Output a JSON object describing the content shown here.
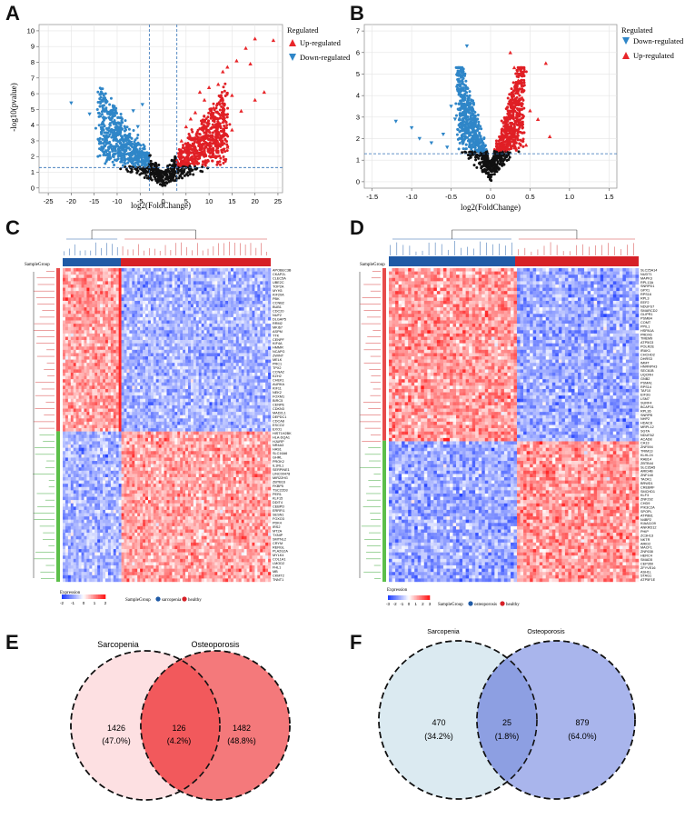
{
  "panels": {
    "A": {
      "letter": "A"
    },
    "B": {
      "letter": "B"
    },
    "C": {
      "letter": "C"
    },
    "D": {
      "letter": "D"
    },
    "E": {
      "letter": "E"
    },
    "F": {
      "letter": "F"
    }
  },
  "chart_data": [
    {
      "panel": "A",
      "type": "scatter",
      "title": "",
      "xlabel": "log2(FoldChange)",
      "ylabel": "-log10(pvalue)",
      "xlim": [
        -27,
        26
      ],
      "ylim": [
        -0.3,
        10.4
      ],
      "xticks": [
        "-25",
        "-20",
        "-15",
        "-10",
        "-5",
        "0",
        "5",
        "10",
        "15",
        "20",
        "25"
      ],
      "xtick_values": [
        -25,
        -20,
        -15,
        -10,
        -5,
        0,
        5,
        10,
        15,
        20,
        25
      ],
      "yticks": [
        "0",
        "1",
        "2",
        "3",
        "4",
        "5",
        "6",
        "7",
        "8",
        "9",
        "10"
      ],
      "ytick_values": [
        0,
        1,
        2,
        3,
        4,
        5,
        6,
        7,
        8,
        9,
        10
      ],
      "threshold_x": [
        -3,
        3
      ],
      "threshold_y": 1.3,
      "legend_title": "Regulated",
      "legend": [
        {
          "label": "Up-regulated",
          "color": "#e8262a",
          "marker": "triangle-up"
        },
        {
          "label": "Down-regulated",
          "color": "#2f86c8",
          "marker": "triangle-down"
        }
      ],
      "series": [
        {
          "name": "Up-regulated",
          "color": "#e8262a",
          "points": [
            [
              24,
              9.4
            ],
            [
              20,
              9.5
            ],
            [
              18,
              8.9
            ],
            [
              16,
              8.1
            ],
            [
              19,
              7.9
            ],
            [
              14,
              7.7
            ],
            [
              13,
              7.4
            ],
            [
              22,
              6.1
            ],
            [
              12,
              6.6
            ],
            [
              10,
              6.4
            ],
            [
              8,
              6.1
            ],
            [
              15,
              5.9
            ],
            [
              9,
              5.6
            ],
            [
              11,
              5.1
            ],
            [
              7,
              4.8
            ],
            [
              17,
              4.9
            ],
            [
              6,
              4.4
            ],
            [
              13,
              4.2
            ],
            [
              5,
              3.9
            ],
            [
              10,
              3.6
            ],
            [
              8,
              3.2
            ],
            [
              4,
              3.0
            ],
            [
              12,
              2.9
            ],
            [
              6,
              2.6
            ],
            [
              9,
              2.3
            ],
            [
              15,
              3.7
            ],
            [
              20,
              5.6
            ],
            [
              3.5,
              2.1
            ],
            [
              5,
              1.8
            ],
            [
              7,
              1.6
            ],
            [
              11,
              2.0
            ],
            [
              14,
              2.6
            ]
          ]
        },
        {
          "name": "Down-regulated",
          "color": "#2f86c8",
          "points": [
            [
              -20,
              5.4
            ],
            [
              -16,
              4.7
            ],
            [
              -13,
              4.4
            ],
            [
              -10,
              4.1
            ],
            [
              -12,
              3.5
            ],
            [
              -8,
              3.3
            ],
            [
              -7,
              2.9
            ],
            [
              -9,
              2.6
            ],
            [
              -6,
              2.4
            ],
            [
              -5,
              2.1
            ],
            [
              -4,
              1.9
            ],
            [
              -11,
              2.4
            ],
            [
              -14,
              3.0
            ],
            [
              -5.5,
              3.9
            ],
            [
              -6.5,
              4.9
            ],
            [
              -4.5,
              5.3
            ],
            [
              -3.8,
              1.6
            ],
            [
              -8.5,
              1.9
            ]
          ]
        }
      ]
    },
    {
      "panel": "B",
      "type": "scatter",
      "title": "",
      "xlabel": "log2(FoldChange)",
      "ylabel": "",
      "xlim": [
        -1.6,
        1.6
      ],
      "ylim": [
        -0.3,
        7.3
      ],
      "xticks": [
        "-1.5",
        "-1.0",
        "-0.5",
        "0.0",
        "0.5",
        "1.0",
        "1.5"
      ],
      "xtick_values": [
        -1.5,
        -1.0,
        -0.5,
        0.0,
        0.5,
        1.0,
        1.5
      ],
      "yticks": [
        "0",
        "1",
        "2",
        "3",
        "4",
        "5",
        "6",
        "7"
      ],
      "ytick_values": [
        0,
        1,
        2,
        3,
        4,
        5,
        6,
        7
      ],
      "threshold_y": 1.3,
      "legend_title": "Regulated",
      "legend": [
        {
          "label": "Down-regulated",
          "color": "#2f86c8",
          "marker": "triangle-down"
        },
        {
          "label": "Up-regulated",
          "color": "#e8262a",
          "marker": "triangle-up"
        }
      ],
      "series": [
        {
          "name": "Down-regulated",
          "color": "#2f86c8",
          "points": [
            [
              -0.3,
              6.3
            ],
            [
              -0.5,
              3.5
            ],
            [
              -1.2,
              2.8
            ],
            [
              -1.0,
              2.5
            ],
            [
              -0.9,
              2.0
            ],
            [
              -0.6,
              2.2
            ],
            [
              -0.45,
              2.9
            ],
            [
              -0.35,
              4.9
            ],
            [
              -0.55,
              1.6
            ],
            [
              -0.25,
              3.6
            ],
            [
              -0.4,
              4.2
            ],
            [
              -0.75,
              1.8
            ]
          ]
        },
        {
          "name": "Up-regulated",
          "color": "#e8262a",
          "points": [
            [
              0.7,
              5.5
            ],
            [
              0.3,
              5.3
            ],
            [
              0.25,
              6.0
            ],
            [
              0.4,
              3.9
            ],
            [
              0.6,
              2.9
            ],
            [
              0.75,
              2.1
            ],
            [
              0.5,
              3.3
            ],
            [
              0.35,
              4.7
            ],
            [
              0.45,
              1.7
            ]
          ]
        }
      ]
    },
    {
      "panel": "C",
      "type": "heatmap",
      "group_label": "SampleGroup",
      "legend_title": "Expression",
      "scale": [
        "-2",
        "-1",
        "0",
        "1",
        "2"
      ],
      "groups": [
        "sarcopenia",
        "healthy"
      ],
      "group_colors": [
        "#1f5aa6",
        "#d62027"
      ],
      "genes": [
        "APOBEC3B",
        "CKAP2L",
        "CLEC5A",
        "UBE2C",
        "TOP2A",
        "MYH3",
        "KIF20A",
        "PBK",
        "CCNB2",
        "BUB1",
        "CDC20",
        "NUF2",
        "DLGAP5",
        "RRM2",
        "MKI67",
        "ASPM",
        "TTK",
        "CENPF",
        "KIF4A",
        "HMMR",
        "NCAPG",
        "ZWINT",
        "MELK",
        "PRC1",
        "TPX2",
        "CCNA2",
        "EZH2",
        "CHEK1",
        "AURKA",
        "KIF11",
        "NEK2",
        "FOXM1",
        "BIRC5",
        "CENPE",
        "CDKN3",
        "MAD2L1",
        "DEPDC1",
        "CDCA8",
        "ESCO2",
        "EXO1",
        "HIST1H2BK",
        "HLA-DQA1",
        "HJURP",
        "NR4A3",
        "HAS1",
        "SLC16A6",
        "GHRL",
        "PROK2",
        "IL1RL1",
        "SERPINE1",
        "LINC00478",
        "MIR22HG",
        "ZBTB16",
        "FKBP5",
        "TSC22D3",
        "PER1",
        "KLF15",
        "DDIT4",
        "CEBPD",
        "ERRFI1",
        "SESN1",
        "FOXO3",
        "PDK4",
        "IRS2",
        "MT2A",
        "TXNIP",
        "SMTNL2",
        "CRYM",
        "RERGL",
        "PLA2G2A",
        "MYLK4",
        "COL1A1",
        "LMOD2",
        "FHL1",
        "MB",
        "CKMT2",
        "TNNT1"
      ],
      "values": []
    },
    {
      "panel": "D",
      "type": "heatmap",
      "group_label": "SampleGroup",
      "legend_title": "Expression",
      "scale": [
        "-3",
        "-2",
        "-1",
        "0",
        "1",
        "2",
        "3"
      ],
      "groups": [
        "osteoporosis",
        "healthy"
      ],
      "group_colors": [
        "#1f5aa6",
        "#d62027"
      ],
      "genes": [
        "SLC25A14",
        "NUDT1",
        "MAPK3",
        "RPL13A",
        "SNRPD1",
        "GPX1",
        "RPS16",
        "RPL3",
        "EEF2",
        "NDUFS7",
        "SMARCD2",
        "GLIPR1",
        "PSMB4",
        "COMT",
        "PPIL1",
        "HSPA1A",
        "PRDX6",
        "TMEM9",
        "ATP5G3",
        "POLR2E",
        "IRAK1",
        "CHCHD2",
        "DHRS3",
        "IMMT",
        "HNRNPH3",
        "SEC61B",
        "UQCRH",
        "GNB2",
        "PSMA1",
        "RPS14",
        "TAF10",
        "EIF3G",
        "LSM7",
        "SURF4",
        "BCAP31",
        "RPL36",
        "SNRPB",
        "NHP2",
        "HDAC8",
        "MRPL12",
        "SGTA",
        "NDUFA2",
        "ACAD8",
        "CA13",
        "ZNF594",
        "TRIM13",
        "KLHL24",
        "RAB14",
        "ZBTB44",
        "SLC35A5",
        "ARID4B",
        "ZNF148",
        "TAOK1",
        "BRWD1",
        "CREBRF",
        "SMCHD1",
        "KLF3",
        "ZNF292",
        "CHD9",
        "PIK3C2A",
        "SPOPL",
        "ATP8B1",
        "N4BP2",
        "KIAA1109",
        "ANKRD12",
        "PHIP",
        "ZC3H13",
        "NKTR",
        "ARID2",
        "MACF1",
        "ZNF638",
        "HERC4",
        "SMAD5",
        "CEP350",
        "ZFYVE16",
        "ASH1L",
        "STAG1",
        "ATP5F1E"
      ],
      "values": []
    },
    {
      "panel": "E",
      "type": "venn",
      "sets": [
        {
          "name": "Sarcopenia",
          "only": "1426",
          "pct": "(47.0%)",
          "color": "#fde0e2"
        },
        {
          "name": "Osteoporosis",
          "only": "1482",
          "pct": "(48.8%)",
          "color": "#f4797b"
        }
      ],
      "intersection": {
        "value": "126",
        "pct": "(4.2%)",
        "color": "#f2595c"
      }
    },
    {
      "panel": "F",
      "type": "venn",
      "sets": [
        {
          "name": "Sarcopenia",
          "only": "470",
          "pct": "(34.2%)",
          "color": "#dbeaf1"
        },
        {
          "name": "Osteoporosis",
          "only": "879",
          "pct": "(64.0%)",
          "color": "#a9b5ec"
        }
      ],
      "intersection": {
        "value": "25",
        "pct": "(1.8%)",
        "color": "#8d9fe2"
      }
    }
  ]
}
